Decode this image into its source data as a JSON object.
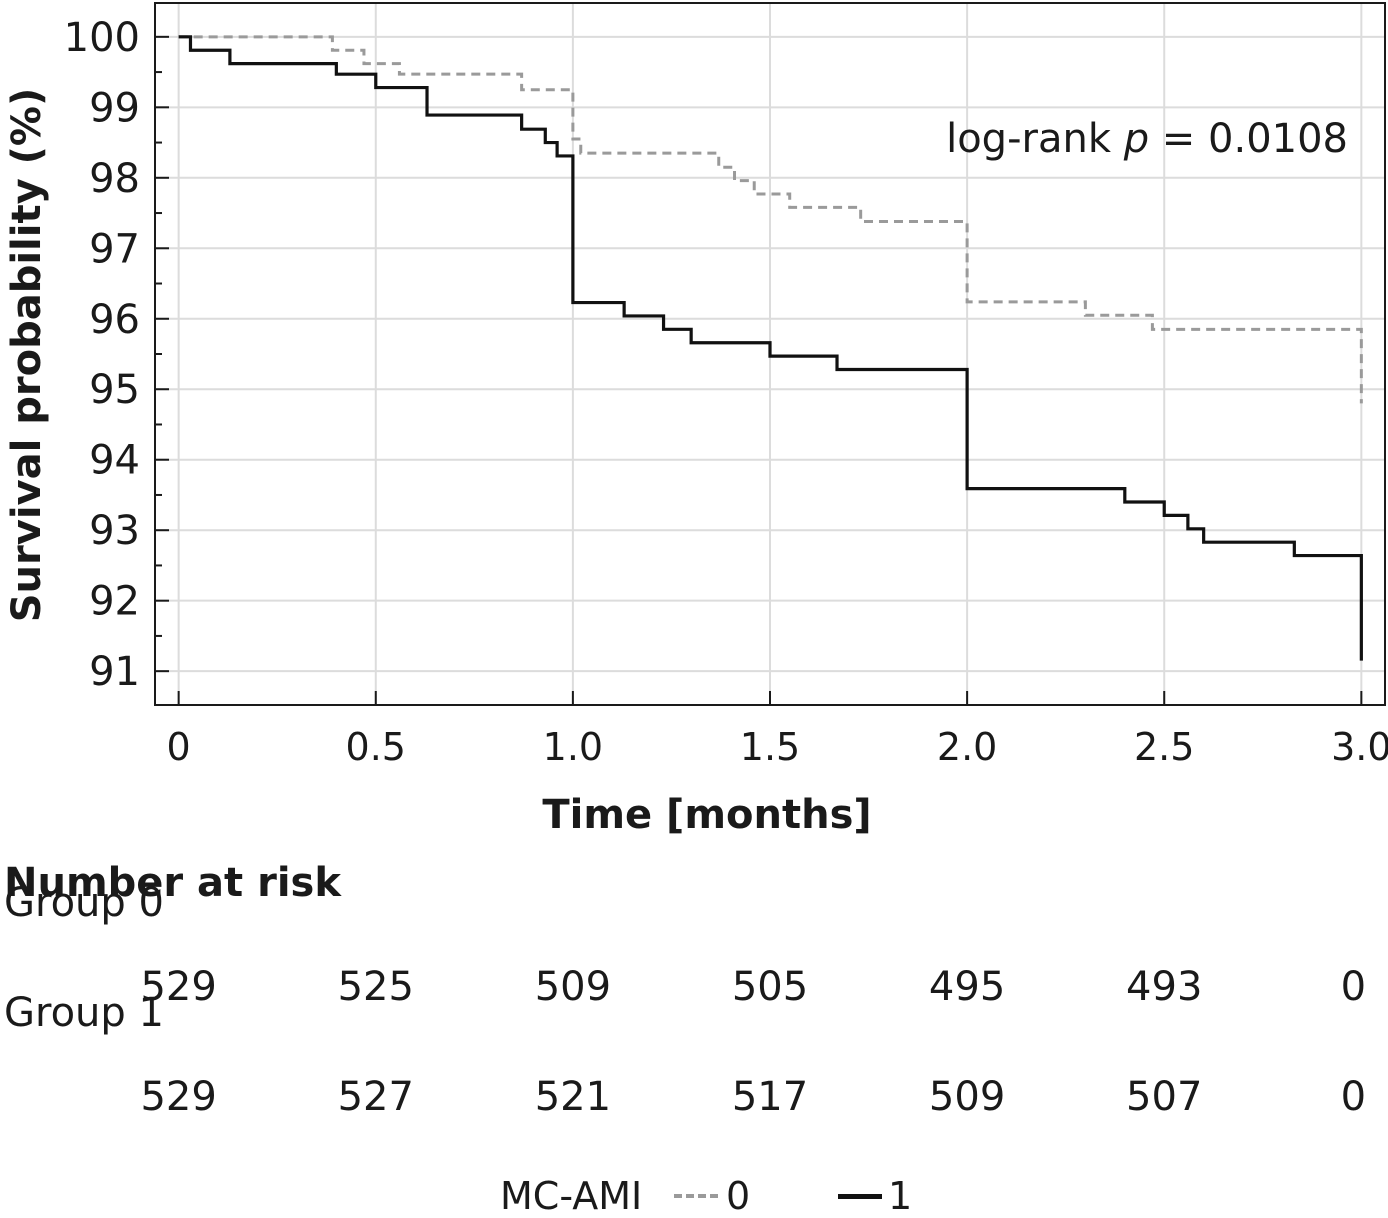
{
  "chart_data": {
    "type": "line",
    "title": "",
    "xlabel": "Time [months]",
    "ylabel": "Survival probability (%)",
    "xlim": [
      -0.06,
      3.06
    ],
    "ylim": [
      90.52,
      100.48
    ],
    "x_ticks": [
      0,
      0.5,
      1.0,
      1.5,
      2.0,
      2.5,
      3.0
    ],
    "x_tick_labels": [
      "0",
      "0.5",
      "1.0",
      "1.5",
      "2.0",
      "2.5",
      "3.0"
    ],
    "y_ticks": [
      91,
      92,
      93,
      94,
      95,
      96,
      97,
      98,
      99,
      100
    ],
    "y_tick_labels": [
      "91",
      "92",
      "93",
      "94",
      "95",
      "96",
      "97",
      "98",
      "99",
      "100"
    ],
    "grid": true,
    "annotation": {
      "prefix": "log-rank ",
      "italic": "p",
      "suffix": " = 0.0108"
    },
    "series": [
      {
        "name": "0",
        "color": "#9a9a9a",
        "dash": true,
        "steps": [
          [
            0,
            100
          ],
          [
            0.39,
            99.81
          ],
          [
            0.47,
            99.62
          ],
          [
            0.56,
            99.47
          ],
          [
            0.87,
            99.25
          ],
          [
            1.0,
            98.55
          ],
          [
            1.02,
            98.35
          ],
          [
            1.37,
            98.15
          ],
          [
            1.41,
            97.96
          ],
          [
            1.46,
            97.77
          ],
          [
            1.55,
            97.58
          ],
          [
            1.73,
            97.38
          ],
          [
            2.0,
            96.24
          ],
          [
            2.3,
            96.05
          ],
          [
            2.47,
            95.85
          ],
          [
            3.0,
            94.8
          ]
        ]
      },
      {
        "name": "1",
        "color": "#111111",
        "dash": false,
        "steps": [
          [
            0,
            100
          ],
          [
            0.03,
            99.81
          ],
          [
            0.13,
            99.62
          ],
          [
            0.4,
            99.47
          ],
          [
            0.5,
            99.28
          ],
          [
            0.63,
            98.89
          ],
          [
            0.87,
            98.69
          ],
          [
            0.93,
            98.5
          ],
          [
            0.96,
            98.31
          ],
          [
            1.0,
            96.23
          ],
          [
            1.13,
            96.04
          ],
          [
            1.23,
            95.85
          ],
          [
            1.3,
            95.66
          ],
          [
            1.5,
            95.47
          ],
          [
            1.67,
            95.28
          ],
          [
            2.0,
            93.59
          ],
          [
            2.4,
            93.4
          ],
          [
            2.5,
            93.21
          ],
          [
            2.56,
            93.02
          ],
          [
            2.6,
            92.83
          ],
          [
            2.83,
            92.64
          ],
          [
            3.0,
            91.15
          ]
        ]
      }
    ],
    "risk_table": {
      "title": "Number at risk",
      "times": [
        0,
        0.5,
        1.0,
        1.5,
        2.0,
        2.5,
        3.0
      ],
      "groups": [
        {
          "label": "Group 0",
          "counts": [
            "529",
            "525",
            "509",
            "505",
            "495",
            "493",
            "0"
          ]
        },
        {
          "label": "Group 1",
          "counts": [
            "529",
            "527",
            "521",
            "517",
            "509",
            "507",
            "0"
          ]
        }
      ]
    },
    "legend": {
      "title": "MC-AMI",
      "placement": "bottom-center",
      "items": [
        "0",
        "1"
      ]
    }
  }
}
